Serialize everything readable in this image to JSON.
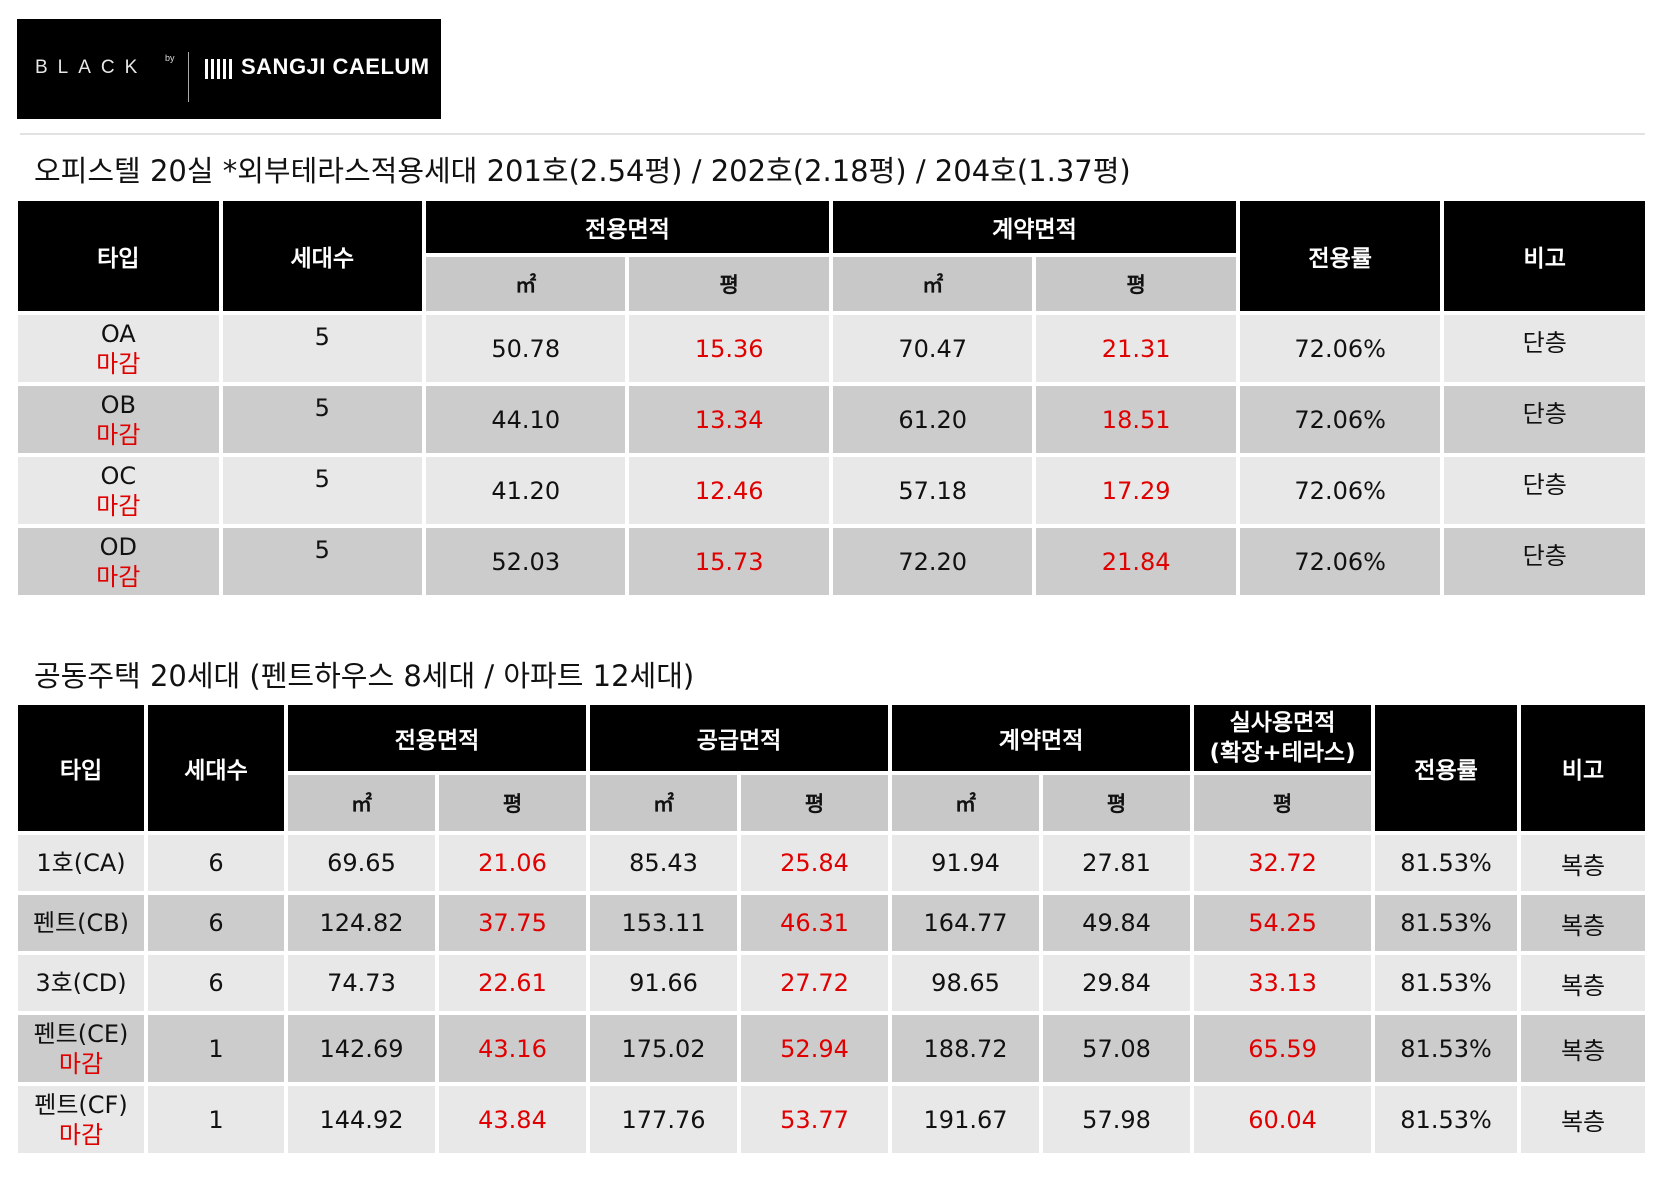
{
  "logo": {
    "brand": "BLACK",
    "by": "by",
    "name": "SANGJI CAELUM"
  },
  "officetel": {
    "title": "오피스텔 20실 *외부테라스적용세대 201호(2.54평) / 202호(2.18평) / 204호(1.37평)",
    "headers": {
      "type": "타입",
      "units": "세대수",
      "exclusive": "전용면적",
      "contract": "계약면적",
      "ratio": "전용률",
      "note": "비고",
      "sqm": "㎡",
      "pyeong": "평"
    },
    "rows": [
      {
        "type": "OA",
        "status": "마감",
        "units": "5",
        "excl_sqm": "50.78",
        "excl_py": "15.36",
        "cont_sqm": "70.47",
        "cont_py": "21.31",
        "ratio": "72.06%",
        "note": "단층"
      },
      {
        "type": "OB",
        "status": "마감",
        "units": "5",
        "excl_sqm": "44.10",
        "excl_py": "13.34",
        "cont_sqm": "61.20",
        "cont_py": "18.51",
        "ratio": "72.06%",
        "note": "단층"
      },
      {
        "type": "OC",
        "status": "마감",
        "units": "5",
        "excl_sqm": "41.20",
        "excl_py": "12.46",
        "cont_sqm": "57.18",
        "cont_py": "17.29",
        "ratio": "72.06%",
        "note": "단층"
      },
      {
        "type": "OD",
        "status": "마감",
        "units": "5",
        "excl_sqm": "52.03",
        "excl_py": "15.73",
        "cont_sqm": "72.20",
        "cont_py": "21.84",
        "ratio": "72.06%",
        "note": "단층"
      }
    ]
  },
  "apartment": {
    "title": "공동주택 20세대 (펜트하우스 8세대 / 아파트 12세대)",
    "headers": {
      "type": "타입",
      "units": "세대수",
      "exclusive": "전용면적",
      "supply": "공급면적",
      "contract": "계약면적",
      "actual_line1": "실사용면적",
      "actual_line2": "(확장+테라스)",
      "ratio": "전용률",
      "note": "비고",
      "sqm": "㎡",
      "pyeong": "평"
    },
    "rows": [
      {
        "type": "1호(CA)",
        "status": "",
        "units": "6",
        "excl_sqm": "69.65",
        "excl_py": "21.06",
        "sup_sqm": "85.43",
        "sup_py": "25.84",
        "cont_sqm": "91.94",
        "cont_py": "27.81",
        "actual_py": "32.72",
        "ratio": "81.53%",
        "note": "복층"
      },
      {
        "type": "펜트(CB)",
        "status": "",
        "units": "6",
        "excl_sqm": "124.82",
        "excl_py": "37.75",
        "sup_sqm": "153.11",
        "sup_py": "46.31",
        "cont_sqm": "164.77",
        "cont_py": "49.84",
        "actual_py": "54.25",
        "ratio": "81.53%",
        "note": "복층"
      },
      {
        "type": "3호(CD)",
        "status": "",
        "units": "6",
        "excl_sqm": "74.73",
        "excl_py": "22.61",
        "sup_sqm": "91.66",
        "sup_py": "27.72",
        "cont_sqm": "98.65",
        "cont_py": "29.84",
        "actual_py": "33.13",
        "ratio": "81.53%",
        "note": "복층"
      },
      {
        "type": "펜트(CE)",
        "status": "마감",
        "units": "1",
        "excl_sqm": "142.69",
        "excl_py": "43.16",
        "sup_sqm": "175.02",
        "sup_py": "52.94",
        "cont_sqm": "188.72",
        "cont_py": "57.08",
        "actual_py": "65.59",
        "ratio": "81.53%",
        "note": "복층"
      },
      {
        "type": "펜트(CF)",
        "status": "마감",
        "units": "1",
        "excl_sqm": "144.92",
        "excl_py": "43.84",
        "sup_sqm": "177.76",
        "sup_py": "53.77",
        "cont_sqm": "191.67",
        "cont_py": "57.98",
        "actual_py": "60.04",
        "ratio": "81.53%",
        "note": "복층"
      }
    ]
  }
}
